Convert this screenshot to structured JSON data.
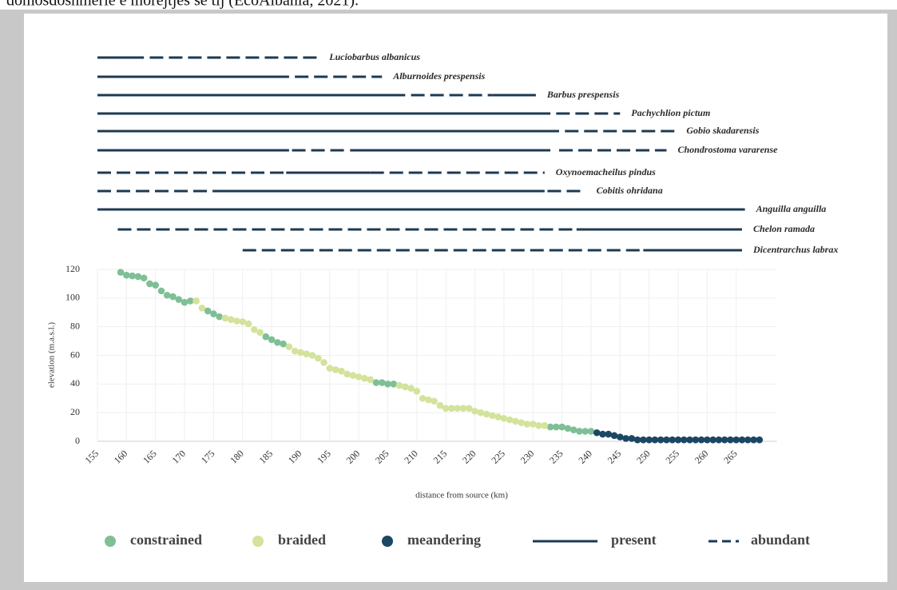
{
  "caption": "domosdoshmërie e morejtjes se tij (EcoAlbania, 2021).",
  "chart_data": {
    "type": "scatter",
    "xlabel": "distance from source (km)",
    "ylabel": "elevation (m.a.s.l.)",
    "xlim": [
      155,
      272
    ],
    "ylim": [
      0,
      120
    ],
    "xticks": [
      155,
      160,
      165,
      170,
      175,
      180,
      185,
      190,
      195,
      200,
      205,
      210,
      215,
      220,
      225,
      230,
      235,
      240,
      245,
      250,
      255,
      260,
      265
    ],
    "yticks": [
      0,
      20,
      40,
      60,
      80,
      100,
      120
    ],
    "grid": true,
    "series": [
      {
        "name": "constrained",
        "color": "#7fbf95",
        "x": [
          159,
          160,
          161,
          162,
          163,
          164,
          165,
          166,
          167,
          168,
          169,
          170,
          171,
          174,
          175,
          176,
          184,
          185,
          186,
          187,
          203,
          204,
          205,
          206,
          233,
          234,
          235,
          236,
          237,
          238,
          239,
          240
        ],
        "values": [
          118,
          116,
          115.5,
          115,
          114,
          110,
          109,
          105,
          102,
          101,
          99,
          97,
          98,
          91,
          89,
          87,
          73,
          71,
          69,
          68,
          41,
          41,
          40,
          40,
          10,
          10,
          10,
          9,
          8,
          7,
          7,
          7
        ]
      },
      {
        "name": "braided",
        "color": "#d3e39b",
        "x": [
          172,
          173,
          177,
          178,
          179,
          180,
          181,
          182,
          183,
          188,
          189,
          190,
          191,
          192,
          193,
          194,
          195,
          196,
          197,
          198,
          199,
          200,
          201,
          202,
          207,
          208,
          209,
          210,
          211,
          212,
          213,
          214,
          215,
          216,
          217,
          218,
          219,
          220,
          221,
          222,
          223,
          224,
          225,
          226,
          227,
          228,
          229,
          230,
          231,
          232
        ],
        "values": [
          98,
          93,
          86,
          85,
          84,
          83.5,
          82,
          78,
          76,
          66,
          63,
          62,
          61,
          60,
          58,
          55,
          51,
          50,
          49,
          47,
          46,
          45,
          44,
          43,
          39,
          38,
          37,
          35,
          30,
          29,
          28,
          25,
          23,
          23,
          23,
          23,
          23,
          21,
          20,
          19,
          18,
          17,
          16,
          15,
          14,
          13,
          12,
          12,
          11,
          11
        ]
      },
      {
        "name": "meandering",
        "color": "#1b4763",
        "x": [
          241,
          242,
          243,
          244,
          245,
          246,
          247,
          248,
          249,
          250,
          251,
          252,
          253,
          254,
          255,
          256,
          257,
          258,
          259,
          260,
          261,
          262,
          263,
          264,
          265,
          266,
          267,
          268,
          269
        ],
        "values": [
          6,
          5,
          5,
          4,
          3,
          2,
          2,
          1,
          1,
          1,
          1,
          1,
          1,
          1,
          1,
          1,
          1,
          1,
          1,
          1,
          1,
          1,
          1,
          1,
          1,
          1,
          1,
          1,
          1
        ]
      }
    ],
    "range_legend": [
      {
        "name": "present",
        "style": "solid"
      },
      {
        "name": "abundant",
        "style": "dashed"
      }
    ],
    "range_color": "#1d3a52",
    "species": [
      {
        "name": "Luciobarbus albanicus",
        "segments": [
          {
            "status": "present",
            "from": 155,
            "to": 163
          },
          {
            "status": "abundant",
            "from": 164,
            "to": 193
          }
        ]
      },
      {
        "name": "Alburnoides prespensis",
        "segments": [
          {
            "status": "present",
            "from": 155,
            "to": 188
          },
          {
            "status": "abundant",
            "from": 189,
            "to": 204
          }
        ]
      },
      {
        "name": "Barbus prespensis",
        "segments": [
          {
            "status": "present",
            "from": 155,
            "to": 208
          },
          {
            "status": "abundant",
            "from": 209,
            "to": 223
          },
          {
            "status": "present",
            "from": 223,
            "to": 230.5
          }
        ]
      },
      {
        "name": "Pachychlion pictum",
        "segments": [
          {
            "status": "present",
            "from": 155,
            "to": 233
          },
          {
            "status": "abundant",
            "from": 234,
            "to": 245
          }
        ]
      },
      {
        "name": "Gobio skadarensis",
        "segments": [
          {
            "status": "present",
            "from": 155,
            "to": 234.5
          },
          {
            "status": "abundant",
            "from": 235.5,
            "to": 254.5
          }
        ]
      },
      {
        "name": "Chondrostoma vararense",
        "segments": [
          {
            "status": "present",
            "from": 155,
            "to": 188
          },
          {
            "status": "abundant",
            "from": 188.5,
            "to": 198
          },
          {
            "status": "present",
            "from": 198.5,
            "to": 233
          },
          {
            "status": "abundant",
            "from": 234.5,
            "to": 253
          }
        ]
      },
      {
        "name": "Oxynoemacheilus pindus",
        "segments": [
          {
            "status": "abundant",
            "from": 155,
            "to": 187.5
          },
          {
            "status": "present",
            "from": 187.5,
            "to": 202
          },
          {
            "status": "abundant",
            "from": 202,
            "to": 232
          }
        ]
      },
      {
        "name": "Cobitis ohridana",
        "segments": [
          {
            "status": "abundant",
            "from": 155,
            "to": 175
          },
          {
            "status": "present",
            "from": 175,
            "to": 232
          },
          {
            "status": "abundant",
            "from": 232.5,
            "to": 239
          }
        ]
      },
      {
        "name": "Anguilla anguilla",
        "segments": [
          {
            "status": "present",
            "from": 155,
            "to": 266.5
          }
        ]
      },
      {
        "name": "Chelon ramada",
        "segments": [
          {
            "status": "abundant",
            "from": 158.5,
            "to": 237.5
          },
          {
            "status": "present",
            "from": 237.5,
            "to": 266
          }
        ]
      },
      {
        "name": "Dicentrarchus labrax",
        "segments": [
          {
            "status": "abundant",
            "from": 180,
            "to": 249
          },
          {
            "status": "present",
            "from": 249,
            "to": 266
          }
        ]
      }
    ]
  }
}
